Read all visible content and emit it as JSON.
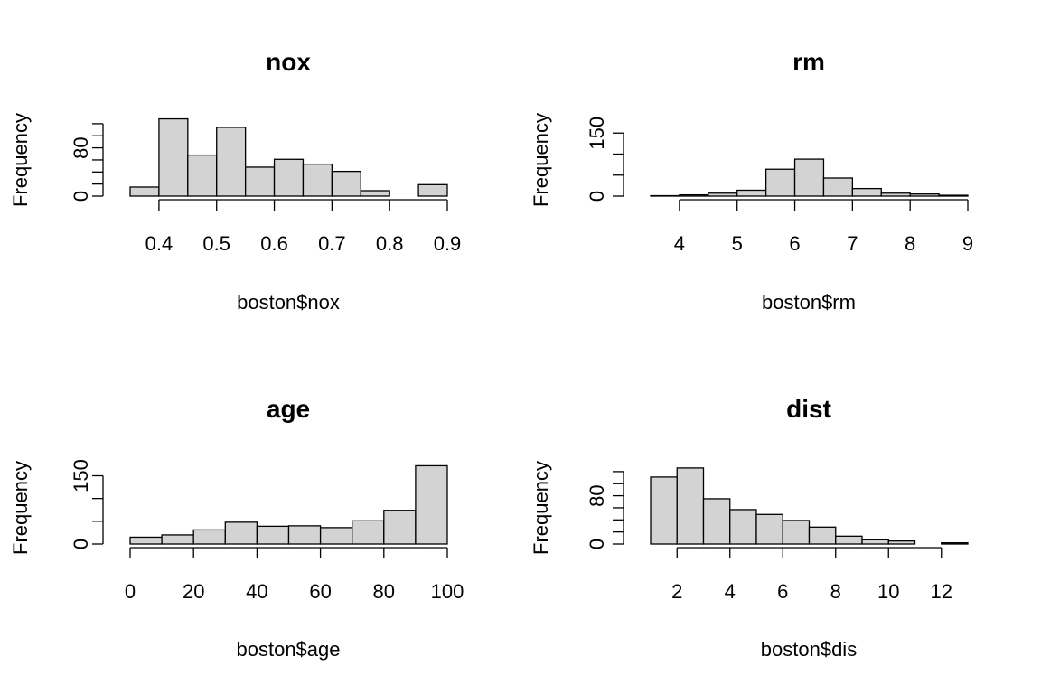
{
  "chart_data": [
    {
      "type": "bar",
      "title": "nox",
      "xlabel": "boston$nox",
      "ylabel": "Frequency",
      "bin_edges": [
        0.35,
        0.4,
        0.45,
        0.5,
        0.55,
        0.6,
        0.65,
        0.7,
        0.75,
        0.8,
        0.85,
        0.9
      ],
      "values": [
        15,
        128,
        68,
        114,
        48,
        61,
        53,
        41,
        9,
        0,
        19
      ],
      "xlim": [
        0.35,
        0.9
      ],
      "xticks": [
        0.4,
        0.5,
        0.6,
        0.7,
        0.8,
        0.9
      ],
      "xtick_labels": [
        "0.4",
        "0.5",
        "0.6",
        "0.7",
        "0.8",
        "0.9"
      ],
      "ylim": [
        0,
        130
      ],
      "yticks": [
        0,
        20,
        40,
        60,
        80,
        100,
        120
      ],
      "ytick_labels": [
        "0",
        "",
        "",
        "",
        "80",
        "",
        ""
      ]
    },
    {
      "type": "bar",
      "title": "rm",
      "xlabel": "boston$rm",
      "ylabel": "Frequency",
      "bin_edges": [
        3.5,
        4,
        4.5,
        5,
        5.5,
        6,
        6.5,
        7,
        7.5,
        8,
        8.5,
        9
      ],
      "values": [
        1,
        3,
        7,
        14,
        64,
        88,
        43,
        18,
        7,
        5,
        2
      ],
      "xlim": [
        3.5,
        9
      ],
      "xticks": [
        4,
        5,
        6,
        7,
        8,
        9
      ],
      "xtick_labels": [
        "4",
        "5",
        "6",
        "7",
        "8",
        "9"
      ],
      "ylim": [
        0,
        150
      ],
      "yticks": [
        0,
        50,
        100,
        150
      ],
      "ytick_labels": [
        "0",
        "",
        "",
        "150"
      ]
    },
    {
      "type": "bar",
      "title": "age",
      "xlabel": "boston$age",
      "ylabel": "Frequency",
      "bin_edges": [
        0,
        10,
        20,
        30,
        40,
        50,
        60,
        70,
        80,
        90,
        100
      ],
      "values": [
        15,
        20,
        31,
        48,
        39,
        40,
        36,
        51,
        74,
        172
      ],
      "xlim": [
        0,
        100
      ],
      "xticks": [
        0,
        20,
        40,
        60,
        80,
        100
      ],
      "xtick_labels": [
        "0",
        "20",
        "40",
        "60",
        "80",
        "100"
      ],
      "ylim": [
        0,
        150
      ],
      "yticks": [
        0,
        50,
        100,
        150
      ],
      "ytick_labels": [
        "0",
        "",
        "",
        "150"
      ]
    },
    {
      "type": "bar",
      "title": "dist",
      "xlabel": "boston$dis",
      "ylabel": "Frequency",
      "bin_edges": [
        1,
        2,
        3,
        4,
        5,
        6,
        7,
        8,
        9,
        10,
        11,
        12,
        13
      ],
      "values": [
        111,
        126,
        75,
        57,
        49,
        39,
        28,
        13,
        7,
        5,
        0,
        2
      ],
      "xlim": [
        1,
        13
      ],
      "xticks": [
        2,
        4,
        6,
        8,
        10,
        12
      ],
      "xtick_labels": [
        "2",
        "4",
        "6",
        "8",
        "10",
        "12"
      ],
      "ylim": [
        0,
        120
      ],
      "yticks": [
        0,
        20,
        40,
        60,
        80,
        100,
        120
      ],
      "ytick_labels": [
        "0",
        "",
        "",
        "",
        "80",
        "",
        ""
      ]
    }
  ]
}
